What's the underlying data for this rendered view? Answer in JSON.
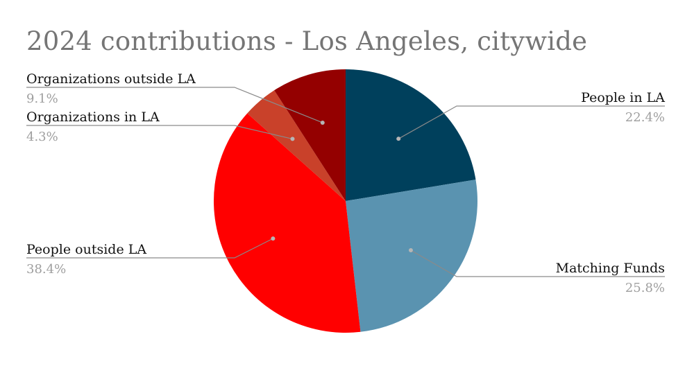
{
  "chart_data": {
    "type": "pie",
    "title": "2024 contributions - Los Angeles, citywide",
    "start_angle_deg": 0,
    "direction": "clockwise",
    "slices": [
      {
        "label": "People in LA",
        "value": 22.4,
        "pct_label": "22.4%",
        "color": "#00405C"
      },
      {
        "label": "Matching Funds",
        "value": 25.8,
        "pct_label": "25.8%",
        "color": "#5A93B0"
      },
      {
        "label": "People outside LA",
        "value": 38.4,
        "pct_label": "38.4%",
        "color": "#FF0000"
      },
      {
        "label": "Organizations in LA",
        "value": 4.3,
        "pct_label": "4.3%",
        "color": "#C9412A"
      },
      {
        "label": "Organizations outside LA",
        "value": 9.1,
        "pct_label": "9.1%",
        "color": "#940000"
      }
    ],
    "legend": "none",
    "label_style": "callout",
    "colors": {
      "title": "#757575",
      "label": "#111111",
      "percent": "#9e9e9e",
      "leader": "#8a8a8a"
    }
  }
}
